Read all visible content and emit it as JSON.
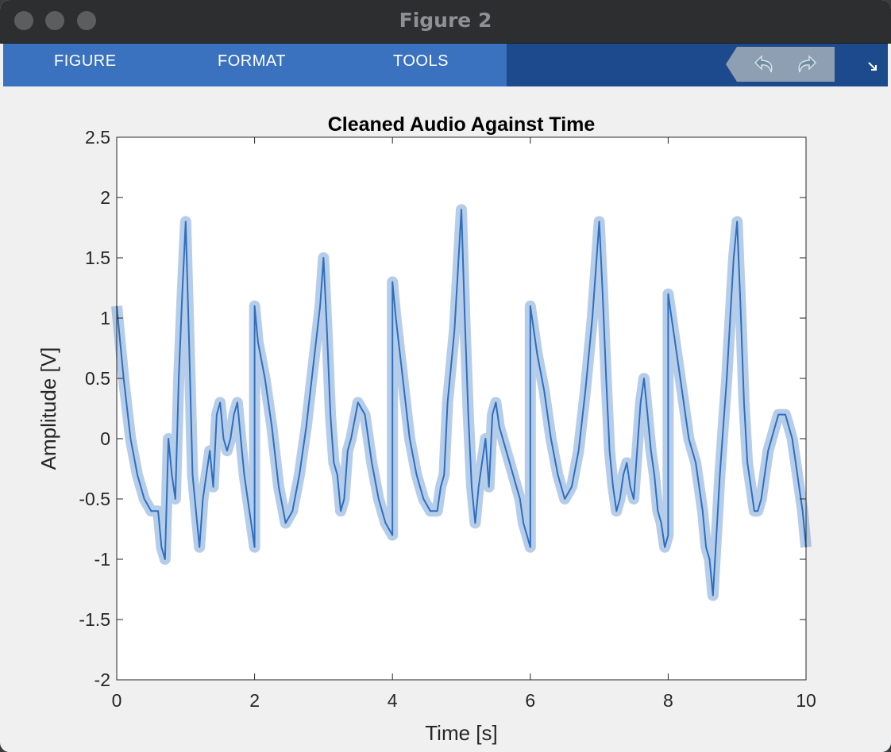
{
  "window": {
    "title": "Figure 2"
  },
  "toolstrip": {
    "tabs": [
      {
        "label": "FIGURE"
      },
      {
        "label": "FORMAT"
      },
      {
        "label": "TOOLS"
      }
    ],
    "undo_icon": "undo-arrow-icon",
    "redo_icon": "redo-arrow-icon",
    "collapse_icon": "collapse-arrow-icon"
  },
  "colors": {
    "tab_bar": "#3a72c0",
    "toolstrip_dark": "#1d4a8c",
    "series": "#2e6fbf",
    "axes_bg": "#ffffff",
    "figure_bg": "#f0f0f0"
  },
  "chart_data": {
    "type": "line",
    "title": "Cleaned Audio Against Time",
    "xlabel": "Time [s]",
    "ylabel": "Amplitude [V]",
    "xlim": [
      0,
      10
    ],
    "ylim": [
      -2,
      2.5
    ],
    "xticks": [
      0,
      2,
      4,
      6,
      8,
      10
    ],
    "yticks": [
      -2,
      -1.5,
      -1,
      -0.5,
      0,
      0.5,
      1,
      1.5,
      2,
      2.5
    ],
    "grid": false,
    "legend": "none",
    "series": [
      {
        "color": "#2e6fbf",
        "x": [
          0,
          0.1,
          0.2,
          0.3,
          0.4,
          0.5,
          0.6,
          0.65,
          0.7,
          0.75,
          0.8,
          0.85,
          0.9,
          0.95,
          1.0,
          1.05,
          1.1,
          1.15,
          1.2,
          1.25,
          1.3,
          1.35,
          1.4,
          1.45,
          1.5,
          1.55,
          1.6,
          1.65,
          1.7,
          1.75,
          1.8,
          1.85,
          1.9,
          1.95,
          2.0,
          2.0,
          2.05,
          2.15,
          2.25,
          2.35,
          2.45,
          2.55,
          2.65,
          2.75,
          2.85,
          2.95,
          3.0,
          3.05,
          3.1,
          3.15,
          3.2,
          3.25,
          3.3,
          3.35,
          3.4,
          3.5,
          3.6,
          3.7,
          3.8,
          3.9,
          4.0,
          4.0,
          4.05,
          4.15,
          4.25,
          4.35,
          4.45,
          4.55,
          4.65,
          4.7,
          4.75,
          4.8,
          4.85,
          4.9,
          4.95,
          5.0,
          5.05,
          5.1,
          5.15,
          5.2,
          5.25,
          5.3,
          5.35,
          5.4,
          5.45,
          5.5,
          5.55,
          5.6,
          5.65,
          5.7,
          5.75,
          5.8,
          5.85,
          5.9,
          5.95,
          6.0,
          6.0,
          6.1,
          6.2,
          6.3,
          6.4,
          6.5,
          6.6,
          6.7,
          6.8,
          6.9,
          6.95,
          7.0,
          7.05,
          7.1,
          7.15,
          7.2,
          7.25,
          7.3,
          7.35,
          7.4,
          7.45,
          7.5,
          7.55,
          7.6,
          7.65,
          7.7,
          7.75,
          7.8,
          7.85,
          7.9,
          7.95,
          8.0,
          8.0,
          8.05,
          8.1,
          8.2,
          8.3,
          8.4,
          8.5,
          8.55,
          8.6,
          8.65,
          8.7,
          8.75,
          8.8,
          8.85,
          8.9,
          8.95,
          9.0,
          9.05,
          9.1,
          9.15,
          9.2,
          9.25,
          9.3,
          9.35,
          9.4,
          9.45,
          9.5,
          9.55,
          9.6,
          9.65,
          9.7,
          9.75,
          9.8,
          9.85,
          9.9,
          9.95,
          10.0
        ],
        "y": [
          1.1,
          0.5,
          0.0,
          -0.3,
          -0.5,
          -0.6,
          -0.6,
          -0.9,
          -1.0,
          0.0,
          -0.3,
          -0.5,
          0.5,
          1.2,
          1.8,
          0.8,
          -0.3,
          -0.6,
          -0.9,
          -0.5,
          -0.3,
          -0.1,
          -0.4,
          0.2,
          0.3,
          0.0,
          -0.1,
          0.0,
          0.2,
          0.3,
          0.0,
          -0.3,
          -0.5,
          -0.7,
          -0.9,
          1.1,
          0.8,
          0.5,
          0.1,
          -0.4,
          -0.7,
          -0.6,
          -0.3,
          0.1,
          0.6,
          1.1,
          1.5,
          0.9,
          0.2,
          -0.2,
          -0.3,
          -0.6,
          -0.5,
          -0.1,
          0.0,
          0.3,
          0.2,
          -0.2,
          -0.5,
          -0.7,
          -0.8,
          1.3,
          1.0,
          0.5,
          0.0,
          -0.3,
          -0.5,
          -0.6,
          -0.6,
          -0.4,
          -0.3,
          0.3,
          0.6,
          0.9,
          1.4,
          1.9,
          1.0,
          0.2,
          -0.4,
          -0.7,
          -0.4,
          -0.2,
          0.0,
          -0.4,
          0.2,
          0.3,
          0.1,
          0.0,
          -0.1,
          -0.2,
          -0.3,
          -0.4,
          -0.5,
          -0.7,
          -0.8,
          -0.9,
          1.1,
          0.7,
          0.4,
          0.0,
          -0.3,
          -0.5,
          -0.4,
          -0.1,
          0.4,
          1.0,
          1.4,
          1.8,
          1.2,
          0.5,
          -0.1,
          -0.4,
          -0.6,
          -0.5,
          -0.3,
          -0.2,
          -0.4,
          -0.5,
          -0.1,
          0.3,
          0.5,
          0.2,
          -0.1,
          -0.3,
          -0.6,
          -0.7,
          -0.9,
          -0.8,
          1.2,
          1.0,
          0.8,
          0.4,
          0.0,
          -0.2,
          -0.6,
          -0.9,
          -1.0,
          -1.3,
          -0.8,
          -0.3,
          0.1,
          0.5,
          1.0,
          1.5,
          1.8,
          1.1,
          0.3,
          -0.2,
          -0.4,
          -0.6,
          -0.6,
          -0.5,
          -0.3,
          -0.1,
          0.0,
          0.1,
          0.2,
          0.2,
          0.2,
          0.1,
          0.0,
          -0.2,
          -0.4,
          -0.6,
          -0.9
        ]
      }
    ]
  }
}
